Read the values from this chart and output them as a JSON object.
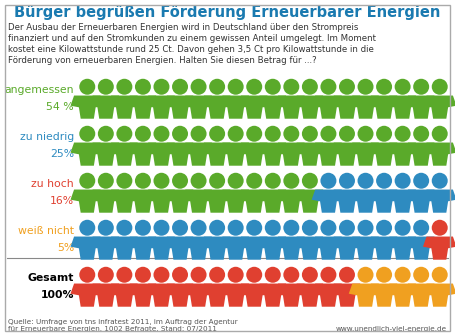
{
  "title": "Bürger begrüßen Förderung Erneuerbarer Energien",
  "subtitle": "Der Ausbau der Erneuerbaren Energien wird in Deutschland über den Strompreis\nfinanziert und auf den Stromkunden zu einem gewissen Anteil umgelegt. Im Moment\nkostet eine Kilowattstunde rund 25 Ct. Davon gehen 3,5 Ct pro Kilowattstunde in die\nFörderung von erneuerbaren Energien. Halten Sie diesen Betrag für ...?",
  "footer": "Quelle: Umfrage von tns infratest 2011, im Auftrag der Agentur\nfür Erneuerbare Energien. 1002 Befragte. Stand: 07/2011",
  "website": "www.unendlich-viel-energie.de",
  "rows": [
    {
      "label1": "angemessen",
      "label2": "54 %",
      "label_color": "#5aaa2a",
      "figures": [
        {
          "color": "#5aaa2a",
          "count": 20
        }
      ]
    },
    {
      "label1": "zu niedrig",
      "label2": "25%",
      "label_color": "#2e8bc0",
      "figures": [
        {
          "color": "#5aaa2a",
          "count": 20
        }
      ]
    },
    {
      "label1": "zu hoch",
      "label2": "16%",
      "label_color": "#e04030",
      "figures": [
        {
          "color": "#5aaa2a",
          "count": 13
        },
        {
          "color": "#2e8bc0",
          "count": 7
        }
      ]
    },
    {
      "label1": "weiß nicht",
      "label2": "5%",
      "label_color": "#f0a020",
      "figures": [
        {
          "color": "#2e8bc0",
          "count": 19
        },
        {
          "color": "#e04030",
          "count": 1
        }
      ]
    },
    {
      "label1": "Gesamt",
      "label2": "100%",
      "label_color": "#000000",
      "label_bold": true,
      "separator": true,
      "figures": [
        {
          "color": "#e04030",
          "count": 15
        },
        {
          "color": "#f0a020",
          "count": 5
        }
      ]
    }
  ],
  "bg_color": "#ffffff",
  "border_color": "#aaaaaa",
  "title_color": "#1a7ab0",
  "subtitle_color": "#333333",
  "footer_color": "#555555",
  "title_fontsize": 10.5,
  "subtitle_fontsize": 6.2,
  "label_fontsize": 7.8,
  "footer_fontsize": 5.2
}
